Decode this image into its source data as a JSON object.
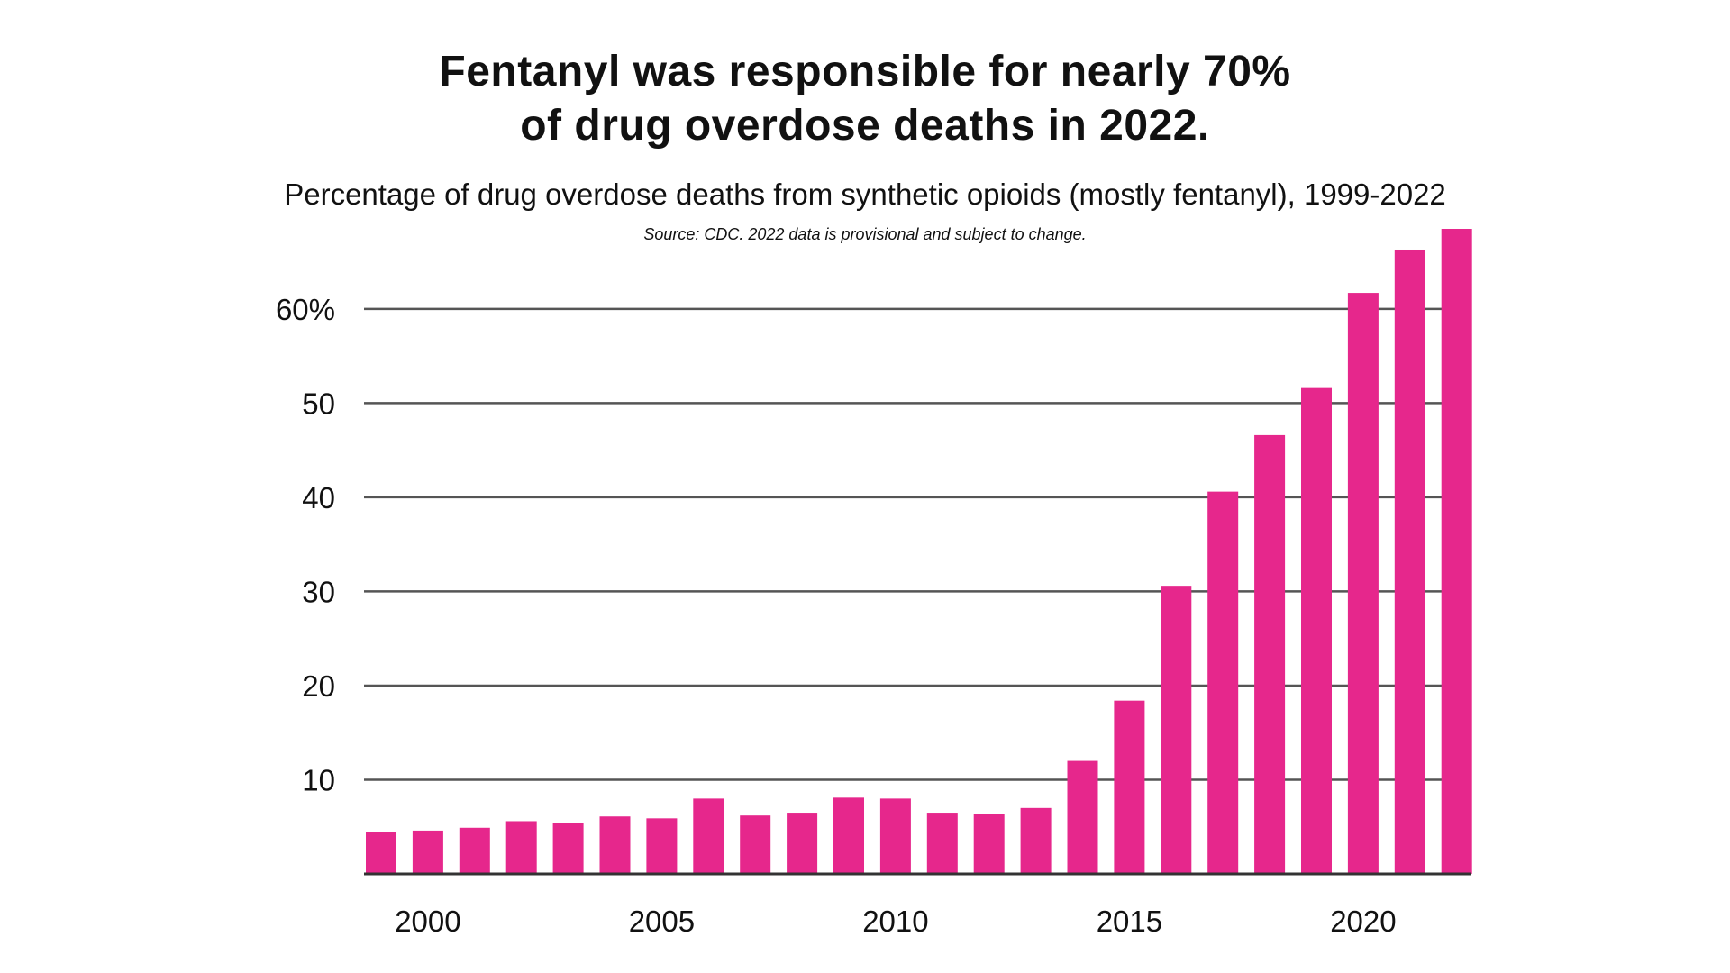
{
  "title_lines": [
    "Fentanyl was responsible for nearly 70%",
    "of drug overdose deaths in 2022."
  ],
  "subtitle": "Percentage of drug overdose deaths from synthetic opioids (mostly fentanyl), 1999-2022",
  "source": "Source: CDC. 2022 data is provisional and subject to change.",
  "chart_data": {
    "type": "bar",
    "title": "Fentanyl was responsible for nearly 70% of drug overdose deaths in 2022.",
    "subtitle": "Percentage of drug overdose deaths from synthetic opioids (mostly fentanyl), 1999-2022",
    "xlabel": "",
    "ylabel": "",
    "categories": [
      1999,
      2000,
      2001,
      2002,
      2003,
      2004,
      2005,
      2006,
      2007,
      2008,
      2009,
      2010,
      2011,
      2012,
      2013,
      2014,
      2015,
      2016,
      2017,
      2018,
      2019,
      2020,
      2021,
      2022
    ],
    "values": [
      4.4,
      4.6,
      4.9,
      5.6,
      5.4,
      6.1,
      5.9,
      8.0,
      6.2,
      6.5,
      8.1,
      8.0,
      6.5,
      6.4,
      7.0,
      12.0,
      18.4,
      30.6,
      40.6,
      46.6,
      51.6,
      61.7,
      66.3,
      68.5
    ],
    "ylim": [
      0,
      68.5
    ],
    "yticks": [
      10,
      20,
      30,
      40,
      50,
      60
    ],
    "ytick_labels": [
      "10",
      "20",
      "30",
      "40",
      "50",
      "60%"
    ],
    "xticks": [
      2000,
      2005,
      2010,
      2015,
      2020
    ],
    "xtick_labels": [
      "2000",
      "2005",
      "2010",
      "2015",
      "2020"
    ],
    "grid": true,
    "legend": "none",
    "bar_color": "#E6278C",
    "grid_color": "#555555",
    "axis_color": "#333333"
  }
}
